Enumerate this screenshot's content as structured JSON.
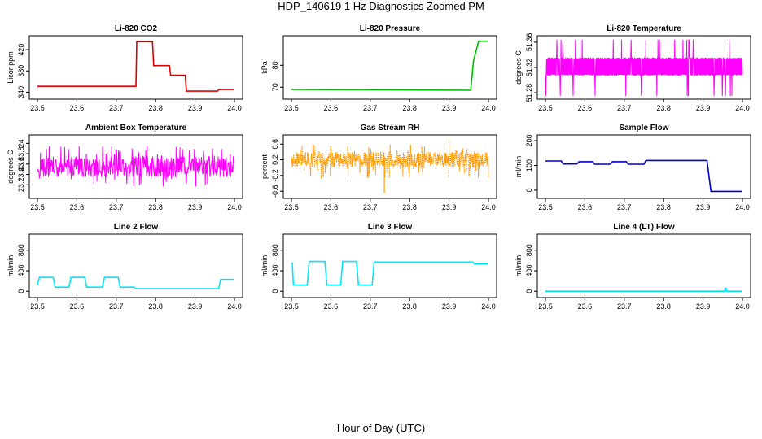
{
  "figure": {
    "title": "HDP_140619  1 Hz Diagnostics Zoomed PM",
    "xlabel": "Hour of Day (UTC)"
  },
  "colors": {
    "red": "#dd0000",
    "green": "#00bb00",
    "magenta": "#ff00ff",
    "orange": "#ff9900",
    "blue": "#0000cc",
    "cyan": "#00e5ff"
  },
  "chart_data": [
    {
      "id": "co2",
      "type": "line",
      "title": "Li-820 CO2",
      "ylabel": "Licor ppm",
      "xlim": [
        23.5,
        24.0
      ],
      "ylim": [
        333,
        440
      ],
      "xticks": [
        23.5,
        23.6,
        23.7,
        23.8,
        23.9,
        24.0
      ],
      "yticks": [
        340,
        380,
        420
      ],
      "color_key": "red",
      "style": "step",
      "series": [
        {
          "name": "CO2",
          "x": [
            23.5,
            23.75,
            23.752,
            23.792,
            23.795,
            23.835,
            23.838,
            23.875,
            23.878,
            23.957,
            23.96,
            24.0
          ],
          "y": [
            351,
            351,
            435,
            435,
            390,
            390,
            372,
            372,
            342,
            342,
            345,
            345
          ]
        }
      ]
    },
    {
      "id": "pressure",
      "type": "line",
      "title": "Li-820 Pressure",
      "ylabel": "kPa",
      "xlim": [
        23.5,
        24.0
      ],
      "ylim": [
        66,
        92
      ],
      "xticks": [
        23.5,
        23.6,
        23.7,
        23.8,
        23.9,
        24.0
      ],
      "yticks": [
        70,
        80
      ],
      "color_key": "green",
      "style": "step",
      "series": [
        {
          "name": "Pressure",
          "x": [
            23.5,
            23.955,
            23.962,
            23.975,
            24.0
          ],
          "y": [
            69,
            68.6,
            82,
            91,
            91
          ]
        }
      ]
    },
    {
      "id": "li_temp",
      "type": "line",
      "title": "Li-820 Temperature",
      "ylabel": "degrees C",
      "xlim": [
        23.5,
        24.0
      ],
      "ylim": [
        51.275,
        51.365
      ],
      "xticks": [
        23.5,
        23.6,
        23.7,
        23.8,
        23.9,
        24.0
      ],
      "yticks": [
        51.28,
        51.32,
        51.36
      ],
      "color_key": "magenta",
      "style": "noise-band",
      "series": [
        {
          "name": "Temperature",
          "base": 51.31,
          "band": [
            51.308,
            51.335
          ],
          "spikes_high": 51.364,
          "spikes_low": 51.275
        }
      ]
    },
    {
      "id": "ambient",
      "type": "line",
      "title": "Ambient Box Temperature",
      "ylabel": "degrees C",
      "xlim": [
        23.5,
        24.0
      ],
      "ylim": [
        23.0,
        24.1
      ],
      "xticks": [
        23.5,
        23.6,
        23.7,
        23.8,
        23.9,
        24.0
      ],
      "yticks": [
        23.2,
        23.4,
        23.6,
        23.8,
        24.0
      ],
      "color_key": "magenta",
      "style": "noise-band",
      "series": [
        {
          "name": "Ambient",
          "band": [
            23.15,
            23.95
          ],
          "core": [
            23.35,
            23.75
          ]
        }
      ]
    },
    {
      "id": "rh",
      "type": "scatter",
      "title": "Gas Stream RH",
      "ylabel": "percent",
      "xlim": [
        23.5,
        24.0
      ],
      "ylim": [
        -0.7,
        0.75
      ],
      "xticks": [
        23.5,
        23.6,
        23.7,
        23.8,
        23.9,
        24.0
      ],
      "yticks": [
        -0.6,
        -0.2,
        0.2,
        0.6
      ],
      "color_key": "orange",
      "style": "noise-points",
      "series": [
        {
          "name": "RH",
          "band": [
            -0.3,
            0.6
          ],
          "core": [
            0.0,
            0.4
          ],
          "min": -0.65,
          "max": 0.72
        }
      ]
    },
    {
      "id": "sample_flow",
      "type": "line",
      "title": "Sample Flow",
      "ylabel": "ml/min",
      "xlim": [
        23.5,
        24.0
      ],
      "ylim": [
        -20,
        210
      ],
      "xticks": [
        23.5,
        23.6,
        23.7,
        23.8,
        23.9,
        24.0
      ],
      "yticks": [
        0,
        100,
        200
      ],
      "color_key": "blue",
      "style": "step",
      "series": [
        {
          "name": "Sample Flow",
          "x": [
            23.5,
            23.54,
            23.545,
            23.58,
            23.585,
            23.62,
            23.625,
            23.665,
            23.67,
            23.705,
            23.71,
            23.75,
            23.755,
            23.91,
            23.92,
            24.0
          ],
          "y": [
            118,
            118,
            106,
            106,
            115,
            115,
            105,
            105,
            115,
            115,
            105,
            105,
            120,
            120,
            -5,
            -5
          ]
        }
      ]
    },
    {
      "id": "line2",
      "type": "line",
      "title": "Line 2 Flow",
      "ylabel": "ml/min",
      "xlim": [
        23.5,
        24.0
      ],
      "ylim": [
        -60,
        1050
      ],
      "xticks": [
        23.5,
        23.6,
        23.7,
        23.8,
        23.9,
        24.0
      ],
      "yticks": [
        0,
        400,
        800
      ],
      "color_key": "cyan",
      "style": "step",
      "series": [
        {
          "name": "Line 2",
          "x": [
            23.5,
            23.505,
            23.54,
            23.545,
            23.58,
            23.585,
            23.62,
            23.625,
            23.665,
            23.67,
            23.705,
            23.71,
            23.745,
            23.75,
            23.96,
            23.965,
            24.0
          ],
          "y": [
            120,
            270,
            270,
            80,
            80,
            270,
            270,
            80,
            80,
            270,
            270,
            80,
            80,
            50,
            50,
            230,
            230
          ]
        }
      ]
    },
    {
      "id": "line3",
      "type": "line",
      "title": "Line 3 Flow",
      "ylabel": "ml/min",
      "xlim": [
        23.5,
        24.0
      ],
      "ylim": [
        -60,
        1050
      ],
      "xticks": [
        23.5,
        23.6,
        23.7,
        23.8,
        23.9,
        24.0
      ],
      "yticks": [
        0,
        400,
        800
      ],
      "color_key": "cyan",
      "style": "step",
      "series": [
        {
          "name": "Line 3",
          "x": [
            23.5,
            23.502,
            23.505,
            23.54,
            23.545,
            23.585,
            23.59,
            23.625,
            23.63,
            23.665,
            23.67,
            23.705,
            23.71,
            23.96,
            23.965,
            24.0
          ],
          "y": [
            550,
            550,
            120,
            120,
            580,
            580,
            120,
            120,
            580,
            580,
            120,
            120,
            570,
            570,
            530,
            530
          ]
        }
      ]
    },
    {
      "id": "line4",
      "type": "line",
      "title": "Line 4 (LT) Flow",
      "ylabel": "ml/min",
      "xlim": [
        23.5,
        24.0
      ],
      "ylim": [
        -60,
        1050
      ],
      "xticks": [
        23.5,
        23.6,
        23.7,
        23.8,
        23.9,
        24.0
      ],
      "yticks": [
        0,
        400,
        800
      ],
      "color_key": "cyan",
      "style": "step",
      "series": [
        {
          "name": "Line 4",
          "x": [
            23.5,
            23.955,
            23.956,
            23.958,
            23.96,
            24.0
          ],
          "y": [
            0,
            0,
            60,
            60,
            0,
            0
          ]
        }
      ]
    }
  ]
}
